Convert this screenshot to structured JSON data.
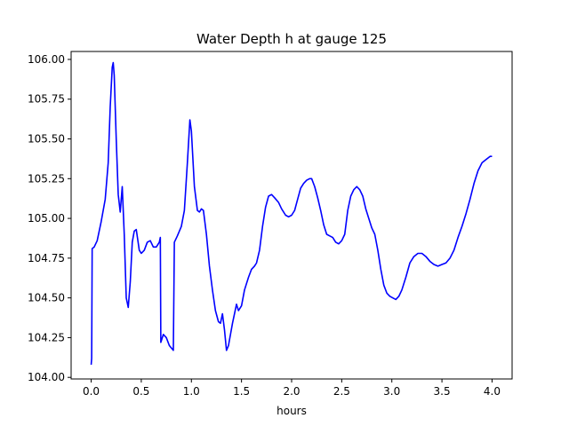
{
  "chart_data": {
    "type": "line",
    "title": "Water Depth h at gauge 125",
    "xlabel": "hours",
    "ylabel": "",
    "xlim": [
      -0.2,
      4.2
    ],
    "ylim": [
      103.99,
      106.05
    ],
    "x_ticks": [
      0.0,
      0.5,
      1.0,
      1.5,
      2.0,
      2.5,
      3.0,
      3.5,
      4.0
    ],
    "x_tick_labels": [
      "0.0",
      "0.5",
      "1.0",
      "1.5",
      "2.0",
      "2.5",
      "3.0",
      "3.5",
      "4.0"
    ],
    "y_ticks": [
      104.0,
      104.25,
      104.5,
      104.75,
      105.0,
      105.25,
      105.5,
      105.75,
      106.0
    ],
    "y_tick_labels": [
      "104.00",
      "104.25",
      "104.50",
      "104.75",
      "105.00",
      "105.25",
      "105.50",
      "105.75",
      "106.00"
    ],
    "grid": false,
    "series": [
      {
        "color": "#0000ff",
        "points": [
          [
            0.0,
            104.08
          ],
          [
            0.005,
            104.12
          ],
          [
            0.01,
            104.81
          ],
          [
            0.03,
            104.82
          ],
          [
            0.06,
            104.86
          ],
          [
            0.1,
            104.98
          ],
          [
            0.14,
            105.12
          ],
          [
            0.17,
            105.35
          ],
          [
            0.19,
            105.7
          ],
          [
            0.21,
            105.95
          ],
          [
            0.22,
            105.98
          ],
          [
            0.23,
            105.9
          ],
          [
            0.25,
            105.5
          ],
          [
            0.27,
            105.15
          ],
          [
            0.29,
            105.04
          ],
          [
            0.31,
            105.2
          ],
          [
            0.33,
            104.9
          ],
          [
            0.35,
            104.5
          ],
          [
            0.37,
            104.44
          ],
          [
            0.39,
            104.6
          ],
          [
            0.41,
            104.85
          ],
          [
            0.43,
            104.92
          ],
          [
            0.45,
            104.93
          ],
          [
            0.48,
            104.8
          ],
          [
            0.5,
            104.78
          ],
          [
            0.53,
            104.8
          ],
          [
            0.56,
            104.85
          ],
          [
            0.59,
            104.86
          ],
          [
            0.62,
            104.82
          ],
          [
            0.65,
            104.82
          ],
          [
            0.68,
            104.85
          ],
          [
            0.69,
            104.88
          ],
          [
            0.695,
            104.22
          ],
          [
            0.72,
            104.27
          ],
          [
            0.75,
            104.25
          ],
          [
            0.78,
            104.2
          ],
          [
            0.82,
            104.17
          ],
          [
            0.83,
            104.85
          ],
          [
            0.86,
            104.89
          ],
          [
            0.9,
            104.95
          ],
          [
            0.93,
            105.05
          ],
          [
            0.96,
            105.35
          ],
          [
            0.985,
            105.62
          ],
          [
            1.0,
            105.55
          ],
          [
            1.03,
            105.2
          ],
          [
            1.06,
            105.05
          ],
          [
            1.08,
            105.04
          ],
          [
            1.1,
            105.06
          ],
          [
            1.12,
            105.05
          ],
          [
            1.15,
            104.9
          ],
          [
            1.18,
            104.7
          ],
          [
            1.21,
            104.55
          ],
          [
            1.24,
            104.42
          ],
          [
            1.27,
            104.35
          ],
          [
            1.29,
            104.34
          ],
          [
            1.31,
            104.4
          ],
          [
            1.33,
            104.3
          ],
          [
            1.35,
            104.17
          ],
          [
            1.37,
            104.2
          ],
          [
            1.39,
            104.27
          ],
          [
            1.41,
            104.34
          ],
          [
            1.43,
            104.4
          ],
          [
            1.45,
            104.46
          ],
          [
            1.47,
            104.42
          ],
          [
            1.5,
            104.45
          ],
          [
            1.53,
            104.55
          ],
          [
            1.57,
            104.63
          ],
          [
            1.6,
            104.68
          ],
          [
            1.63,
            104.7
          ],
          [
            1.65,
            104.72
          ],
          [
            1.68,
            104.8
          ],
          [
            1.71,
            104.95
          ],
          [
            1.74,
            105.07
          ],
          [
            1.77,
            105.14
          ],
          [
            1.8,
            105.15
          ],
          [
            1.83,
            105.13
          ],
          [
            1.87,
            105.1
          ],
          [
            1.9,
            105.06
          ],
          [
            1.94,
            105.02
          ],
          [
            1.97,
            105.01
          ],
          [
            2.0,
            105.02
          ],
          [
            2.03,
            105.05
          ],
          [
            2.06,
            105.12
          ],
          [
            2.09,
            105.19
          ],
          [
            2.12,
            105.22
          ],
          [
            2.15,
            105.24
          ],
          [
            2.18,
            105.25
          ],
          [
            2.2,
            105.25
          ],
          [
            2.23,
            105.2
          ],
          [
            2.26,
            105.13
          ],
          [
            2.29,
            105.05
          ],
          [
            2.32,
            104.96
          ],
          [
            2.35,
            104.9
          ],
          [
            2.38,
            104.89
          ],
          [
            2.41,
            104.88
          ],
          [
            2.44,
            104.85
          ],
          [
            2.47,
            104.84
          ],
          [
            2.5,
            104.86
          ],
          [
            2.53,
            104.9
          ],
          [
            2.56,
            105.05
          ],
          [
            2.59,
            105.14
          ],
          [
            2.62,
            105.18
          ],
          [
            2.65,
            105.2
          ],
          [
            2.68,
            105.18
          ],
          [
            2.71,
            105.14
          ],
          [
            2.74,
            105.06
          ],
          [
            2.77,
            105.0
          ],
          [
            2.8,
            104.94
          ],
          [
            2.83,
            104.9
          ],
          [
            2.86,
            104.8
          ],
          [
            2.89,
            104.68
          ],
          [
            2.92,
            104.58
          ],
          [
            2.95,
            104.53
          ],
          [
            2.98,
            104.51
          ],
          [
            3.01,
            104.5
          ],
          [
            3.04,
            104.49
          ],
          [
            3.07,
            104.51
          ],
          [
            3.1,
            104.55
          ],
          [
            3.14,
            104.63
          ],
          [
            3.18,
            104.72
          ],
          [
            3.22,
            104.76
          ],
          [
            3.26,
            104.78
          ],
          [
            3.3,
            104.78
          ],
          [
            3.34,
            104.76
          ],
          [
            3.38,
            104.73
          ],
          [
            3.42,
            104.71
          ],
          [
            3.46,
            104.7
          ],
          [
            3.5,
            104.71
          ],
          [
            3.54,
            104.72
          ],
          [
            3.58,
            104.75
          ],
          [
            3.62,
            104.8
          ],
          [
            3.66,
            104.88
          ],
          [
            3.7,
            104.95
          ],
          [
            3.74,
            105.03
          ],
          [
            3.78,
            105.12
          ],
          [
            3.82,
            105.22
          ],
          [
            3.86,
            105.3
          ],
          [
            3.9,
            105.35
          ],
          [
            3.94,
            105.37
          ],
          [
            3.98,
            105.39
          ],
          [
            4.0,
            105.39
          ]
        ]
      }
    ]
  }
}
